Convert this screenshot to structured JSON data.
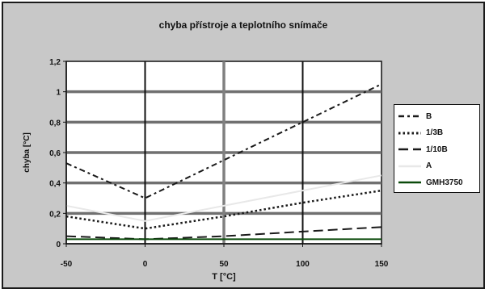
{
  "chart_data": {
    "type": "line",
    "title": "chyba přístroje a teplotního snímače",
    "xlabel": "T [°C]",
    "ylabel": "chyba [°C]",
    "xlim": [
      -50,
      150
    ],
    "ylim": [
      0,
      1.2
    ],
    "xticks": [
      "-50",
      "0",
      "50",
      "100",
      "150"
    ],
    "yticks": [
      "0",
      "0,2",
      "0,4",
      "0,6",
      "0,8",
      "1",
      "1,2"
    ],
    "grid": true,
    "legend_position": "right",
    "series": [
      {
        "name": "B",
        "color": "#1a1a1a",
        "dash": "7,4,3,4",
        "width": 2,
        "points": [
          [
            -50,
            0.53
          ],
          [
            0,
            0.3
          ],
          [
            50,
            0.55
          ],
          [
            100,
            0.8
          ],
          [
            150,
            1.05
          ]
        ]
      },
      {
        "name": "1/3B",
        "color": "#1a1a1a",
        "dash": "2.5,3",
        "width": 2.5,
        "points": [
          [
            -50,
            0.18
          ],
          [
            0,
            0.1
          ],
          [
            50,
            0.18
          ],
          [
            100,
            0.27
          ],
          [
            150,
            0.35
          ]
        ]
      },
      {
        "name": "1/10B",
        "color": "#1a1a1a",
        "dash": "12,6",
        "width": 2,
        "points": [
          [
            -50,
            0.05
          ],
          [
            0,
            0.03
          ],
          [
            50,
            0.05
          ],
          [
            100,
            0.08
          ],
          [
            150,
            0.11
          ]
        ]
      },
      {
        "name": "A",
        "color": "#e8e8e8",
        "dash": "",
        "width": 2,
        "points": [
          [
            -50,
            0.25
          ],
          [
            0,
            0.15
          ],
          [
            50,
            0.25
          ],
          [
            100,
            0.35
          ],
          [
            150,
            0.45
          ]
        ]
      },
      {
        "name": "GMH3750",
        "color": "#0b4a0b",
        "dash": "",
        "width": 2,
        "points": [
          [
            -50,
            0.03
          ],
          [
            0,
            0.03
          ],
          [
            50,
            0.03
          ],
          [
            100,
            0.03
          ],
          [
            150,
            0.03
          ]
        ]
      }
    ]
  }
}
